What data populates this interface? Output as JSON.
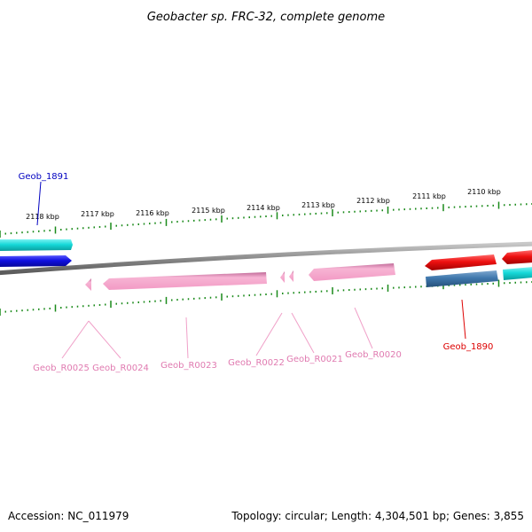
{
  "title": "Geobacter sp. FRC-32, complete genome",
  "accession": "Accession: NC_011979",
  "topology": "Topology: circular; Length: 4,304,501 bp; Genes: 3,855",
  "colors": {
    "backbone": "#888888",
    "tick": "#1a8a1a",
    "blue": "#1010e0",
    "cyan": "#15d8d8",
    "pink": "#f5a6cc",
    "red": "#ee1111",
    "steel": "#3f78ad",
    "blue_label": "#0000c0",
    "pink_label": "#e07ab0",
    "red_label": "#dd0000"
  },
  "tick_labels": [
    "2118 kbp",
    "2117 kbp",
    "2116 kbp",
    "2115 kbp",
    "2114 kbp",
    "2113 kbp",
    "2112 kbp",
    "2111 kbp",
    "2110 kbp"
  ],
  "gene_labels": {
    "geob_1891": "Geob_1891",
    "geob_1890": "Geob_1890",
    "geob_r0025": "Geob_R0025",
    "geob_r0024": "Geob_R0024",
    "geob_r0023": "Geob_R0023",
    "geob_r0022": "Geob_R0022",
    "geob_r0021": "Geob_R0021",
    "geob_r0020": "Geob_R0020"
  }
}
